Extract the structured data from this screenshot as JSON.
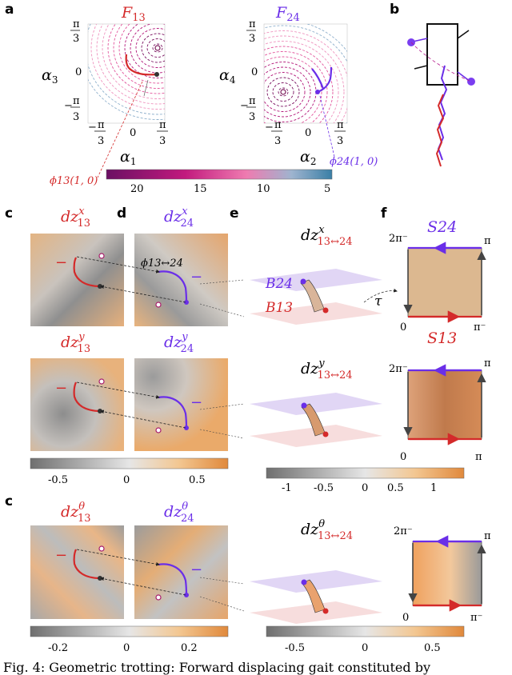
{
  "panel_labels": {
    "a": "a",
    "b": "b",
    "c1": "c",
    "d": "d",
    "e": "e",
    "f": "f",
    "c2": "c",
    "c3": "c"
  },
  "colors": {
    "red": "#d42a2a",
    "purple": "#6a2ee8",
    "orange": "#e89a55",
    "gray": "#8a8a8a",
    "tan": "#d7b48c"
  },
  "panel_a": {
    "left": {
      "title": "F",
      "title_sub": "13",
      "ylabel": "α",
      "ylabel_sub": "3",
      "xlabel": "α",
      "xlabel_sub": "1",
      "phi_label": "ϕ13(1, 0)"
    },
    "right": {
      "title": "F",
      "title_sub": "24",
      "ylabel": "α",
      "ylabel_sub": "4",
      "xlabel": "α",
      "xlabel_sub": "2",
      "phi_label": "ϕ24(1, 0)"
    },
    "yticks": [
      "π/3",
      "0",
      "−π/3"
    ],
    "xticks": [
      "−π/3",
      "0",
      "π/3"
    ],
    "colorbar_ticks": [
      "20",
      "15",
      "10",
      "5"
    ]
  },
  "rows": [
    {
      "left_title": "dz",
      "left_sup": "x",
      "left_sub": "13",
      "right_title": "dz",
      "right_sup": "x",
      "right_sub": "24",
      "e_title_sup": "x",
      "phi_label": "ϕ13↔24",
      "b24": "B24",
      "b13": "B13",
      "tau": "τ",
      "f_top": "S24",
      "f_bot": "S13",
      "f_tl": "2π⁻",
      "f_tr": "π",
      "f_bl": "0",
      "f_br": "π⁻"
    },
    {
      "left_title": "dz",
      "left_sup": "y",
      "left_sub": "13",
      "right_title": "dz",
      "right_sup": "y",
      "right_sub": "24",
      "e_title_sup": "y",
      "f_tl": "2π⁻",
      "f_tr": "π",
      "f_bl": "0",
      "f_br": "π"
    },
    {
      "left_title": "dz",
      "left_sup": "θ",
      "left_sub": "13",
      "right_title": "dz",
      "right_sup": "θ",
      "right_sub": "24",
      "e_title_sup": "θ",
      "f_tl": "2π⁻",
      "f_tr": "π",
      "f_bl": "0",
      "f_br": "π⁻"
    }
  ],
  "e_title_prefix": "dz",
  "e_title_sub": "13↔24",
  "colorbar_cd_row2": [
    "-0.5",
    "0",
    "0.5"
  ],
  "colorbar_e_row2": [
    "-1",
    "-0.5",
    "0",
    "0.5",
    "1"
  ],
  "colorbar_cd_row3": [
    "-0.2",
    "0",
    "0.2"
  ],
  "colorbar_e_row3": [
    "-0.5",
    "0",
    "0.5"
  ],
  "minus_mark": "−",
  "caption": "Fig. 4: Geometric trotting: Forward displacing gait constituted by"
}
